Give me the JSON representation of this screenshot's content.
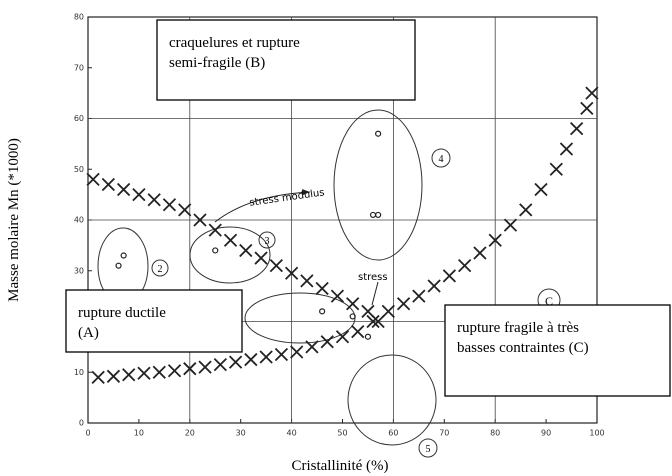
{
  "chart_data": {
    "type": "scatter",
    "xlabel": "Cristallinité (%)",
    "ylabel": "Masse molaire Mn (*1000)",
    "xlim": [
      0,
      100
    ],
    "ylim": [
      0,
      80
    ],
    "xticks": [
      0,
      10,
      20,
      30,
      40,
      50,
      60,
      70,
      80,
      90,
      100
    ],
    "yticks": [
      0,
      10,
      20,
      30,
      40,
      50,
      60,
      70,
      80
    ],
    "grid": true,
    "series": [
      {
        "name": "stress modulus",
        "color": "#222222",
        "marker": "x",
        "x": [
          1,
          4,
          7,
          10,
          13,
          16,
          19,
          22,
          25,
          28,
          31,
          34,
          37,
          40,
          43,
          46,
          49,
          52,
          55,
          57
        ],
        "values": [
          48,
          47,
          46,
          45,
          44,
          43,
          42,
          40,
          38,
          36,
          34,
          32.5,
          31,
          29.5,
          28,
          26.5,
          25,
          23.5,
          22,
          20
        ]
      },
      {
        "name": "stress",
        "color": "#222222",
        "marker": "x",
        "x": [
          2,
          5,
          8,
          11,
          14,
          17,
          20,
          23,
          26,
          29,
          32,
          35,
          38,
          41,
          44,
          47,
          50,
          53,
          56,
          59,
          62,
          65,
          68,
          71,
          74,
          77,
          80,
          83,
          86,
          89,
          92,
          94,
          96,
          98,
          99
        ],
        "values": [
          9,
          9.2,
          9.5,
          9.8,
          10,
          10.3,
          10.7,
          11,
          11.5,
          12,
          12.5,
          13,
          13.5,
          14,
          15,
          16,
          17,
          18,
          20,
          22,
          23.5,
          25,
          27,
          29,
          31,
          33.5,
          36,
          39,
          42,
          46,
          50,
          54,
          58,
          62,
          65
        ]
      },
      {
        "color": "#222222",
        "marker": "o",
        "x": [
          7,
          6,
          25,
          46,
          52,
          57,
          56,
          57,
          55
        ],
        "values": [
          33,
          31,
          34,
          22,
          21,
          57,
          41,
          41,
          17
        ]
      }
    ],
    "regions": [
      "2",
      "3",
      "4",
      "5",
      "C"
    ],
    "annotations": [
      {
        "lines": [
          "craquelures et rupture",
          "semi-fragile (B)"
        ]
      },
      {
        "lines": [
          "rupture ductile",
          "(A)"
        ]
      },
      {
        "lines": [
          "rupture fragile à très",
          "basses contraintes (C)"
        ]
      }
    ]
  }
}
